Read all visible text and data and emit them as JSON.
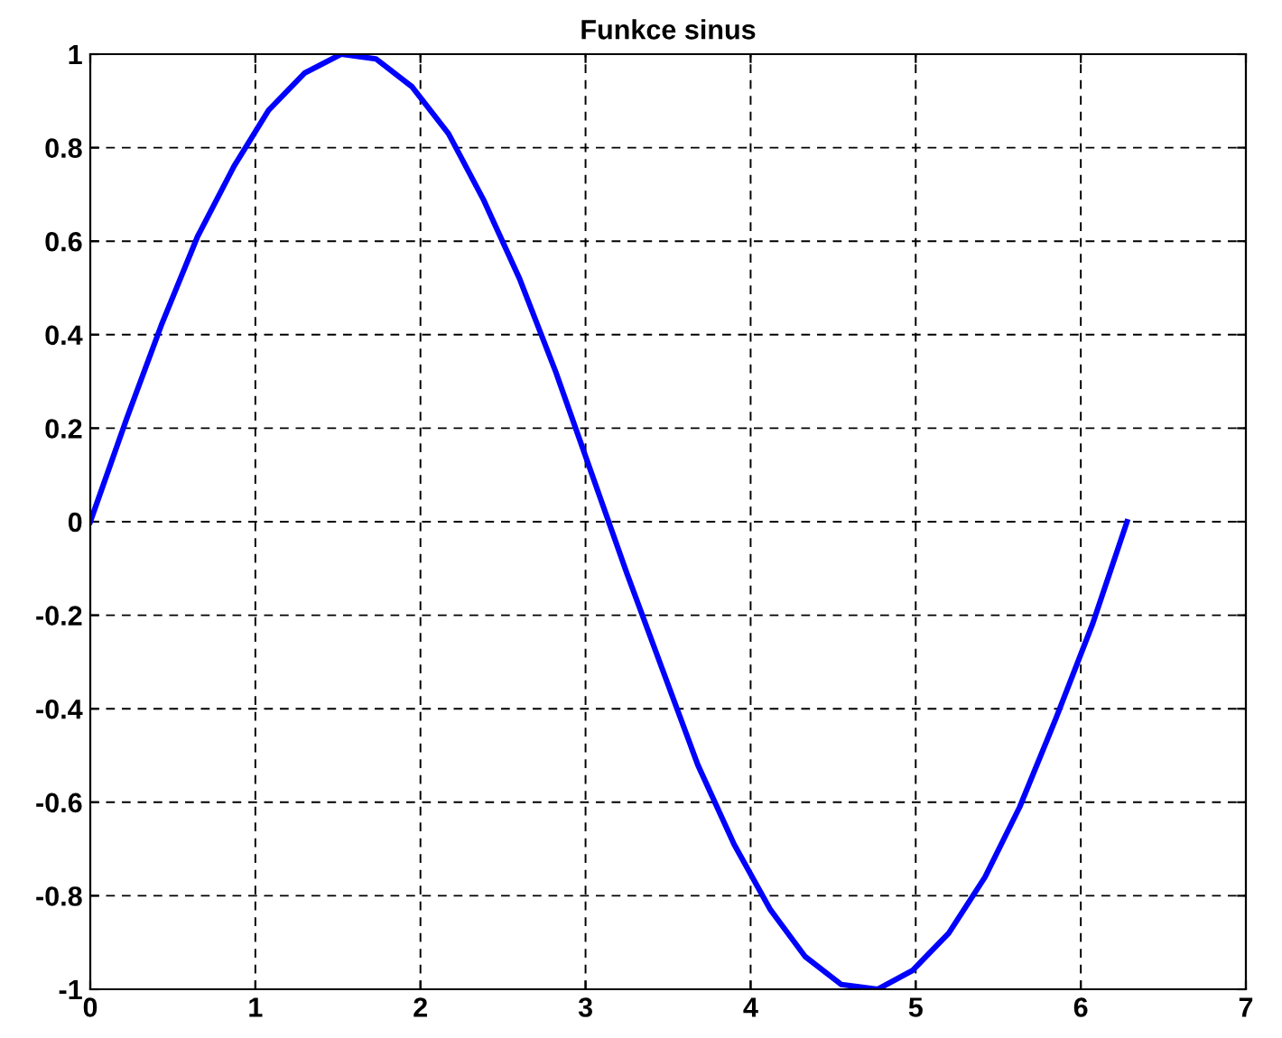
{
  "chart_data": {
    "type": "line",
    "title": "Funkce sinus",
    "x": [
      0,
      0.22,
      0.43,
      0.65,
      0.87,
      1.08,
      1.3,
      1.52,
      1.73,
      1.95,
      2.17,
      2.38,
      2.6,
      2.82,
      3.03,
      3.25,
      3.47,
      3.68,
      3.9,
      4.12,
      4.33,
      4.55,
      4.77,
      4.98,
      5.2,
      5.42,
      5.63,
      5.85,
      6.07,
      6.28
    ],
    "series": [
      {
        "color": "#0000ff",
        "values": [
          0,
          0.22,
          0.42,
          0.61,
          0.76,
          0.88,
          0.96,
          1.0,
          0.99,
          0.93,
          0.83,
          0.69,
          0.52,
          0.32,
          0.11,
          -0.11,
          -0.32,
          -0.52,
          -0.69,
          -0.83,
          -0.93,
          -0.99,
          -1.0,
          -0.96,
          -0.88,
          -0.76,
          -0.61,
          -0.42,
          -0.22,
          0
        ]
      }
    ],
    "xlim": [
      0,
      7
    ],
    "xticks": [
      0,
      1,
      2,
      3,
      4,
      5,
      6,
      7
    ],
    "ylim": [
      -1,
      1
    ],
    "yticks": [
      -1,
      -0.8,
      -0.6,
      -0.4,
      -0.2,
      0,
      0.2,
      0.4,
      0.6,
      0.8,
      1
    ],
    "grid": true,
    "line_style": "solid",
    "marker": "none"
  }
}
